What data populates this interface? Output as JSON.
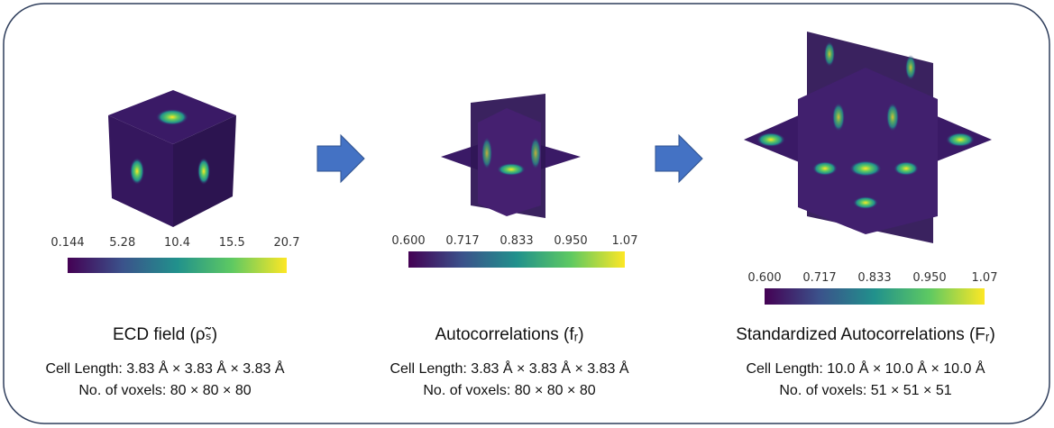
{
  "panels": [
    {
      "colorbar_ticks": [
        "0.144",
        "5.28",
        "10.4",
        "15.5",
        "20.7"
      ],
      "title": "ECD field (ρ̃ₛ)",
      "cell_length": "Cell Length: 3.83 Å × 3.83 Å × 3.83 Å",
      "voxels": "No. of voxels: 80 × 80 × 80"
    },
    {
      "colorbar_ticks": [
        "0.600",
        "0.717",
        "0.833",
        "0.950",
        "1.07"
      ],
      "title": "Autocorrelations (fᵣ)",
      "cell_length": "Cell Length: 3.83 Å × 3.83 Å × 3.83 Å",
      "voxels": "No. of voxels: 80 × 80 × 80"
    },
    {
      "colorbar_ticks": [
        "0.600",
        "0.717",
        "0.833",
        "0.950",
        "1.07"
      ],
      "title": "Standardized Autocorrelations (Fᵣ)",
      "cell_length": "Cell Length: 10.0 Å × 10.0 Å × 10.0 Å",
      "voxels": "No. of voxels: 51 × 51 × 51"
    }
  ]
}
